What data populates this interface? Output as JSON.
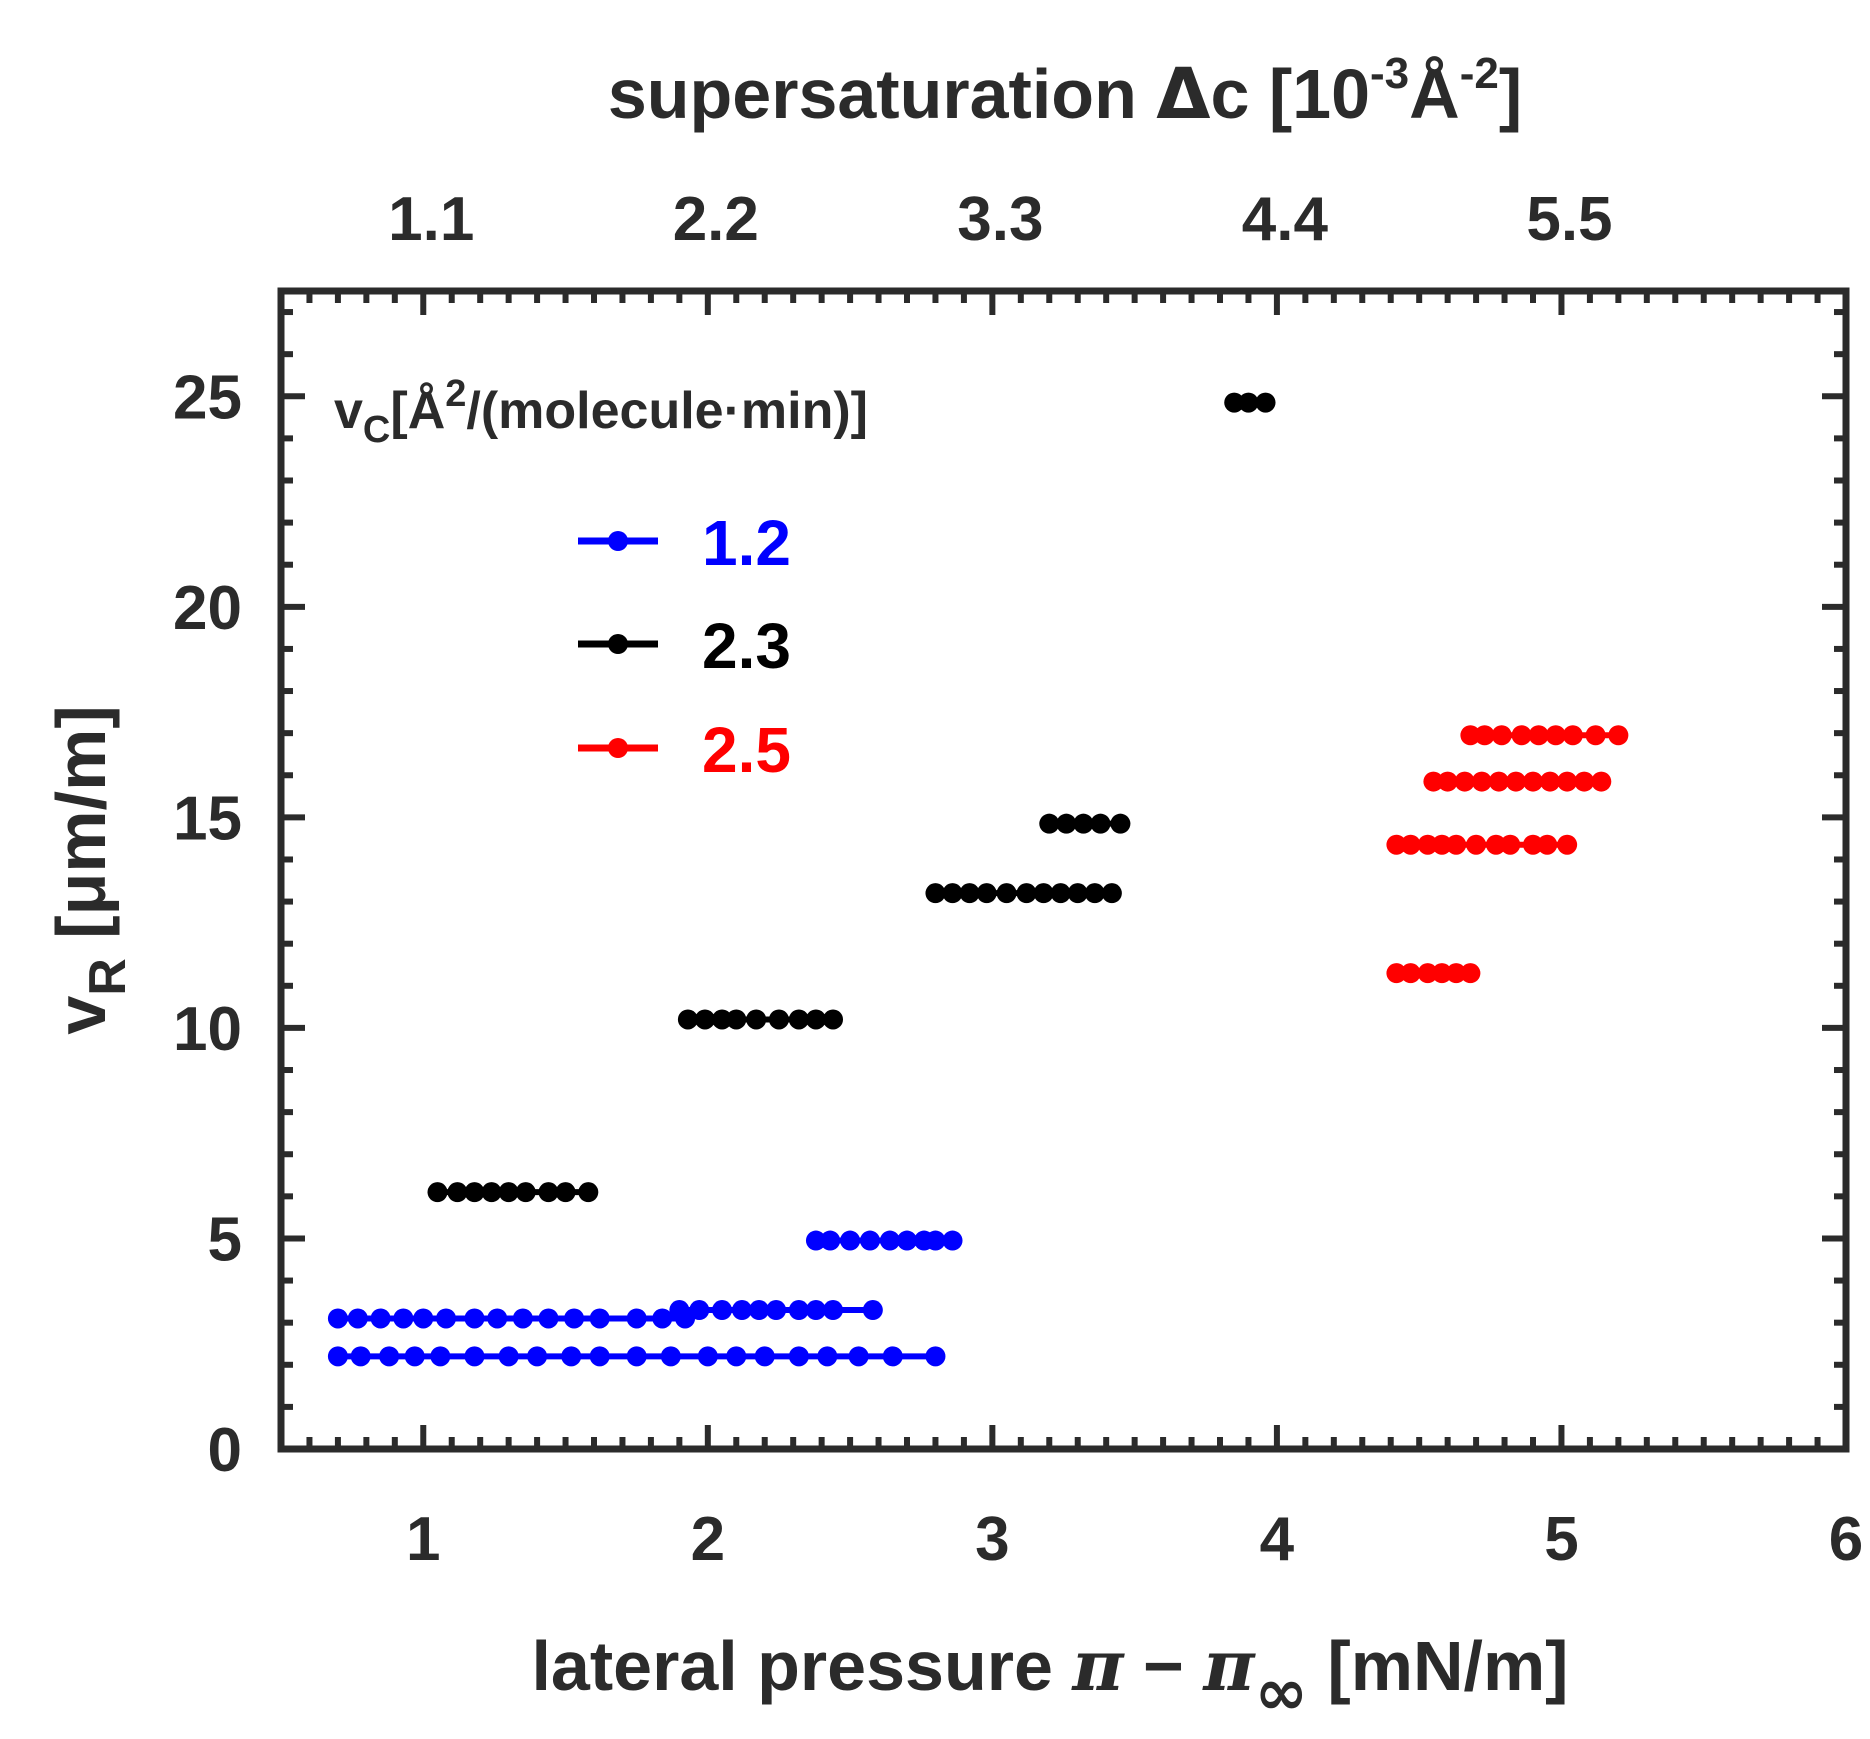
{
  "chart_data": {
    "type": "scatter",
    "title": "",
    "xlabel": {
      "main": "lateral pressure ",
      "pi1": "π",
      "minus": " − ",
      "pi2": "π",
      "sub": "∞",
      "unit": " [mN/m]"
    },
    "ylabel": {
      "main": "v",
      "sub": "R",
      "unit": " [μm/m]"
    },
    "top_axis": {
      "label_main": "supersaturation ",
      "delta": "Δ",
      "label_var": "c [10",
      "exp1": "-3",
      "angstrom": "Å",
      "exp2": "-2",
      "label_end": "]",
      "tick_labels": [
        "1.1",
        "2.2",
        "3.3",
        "4.4",
        "5.5"
      ],
      "tick_positions": [
        1,
        2,
        3,
        4,
        5
      ]
    },
    "xlim": [
      0.5,
      6
    ],
    "ylim": [
      0,
      27.5
    ],
    "x_ticks": [
      1,
      2,
      3,
      4,
      5,
      6
    ],
    "x_tick_labels": [
      "1",
      "2",
      "3",
      "4",
      "5",
      "6"
    ],
    "y_ticks": [
      0,
      5,
      10,
      15,
      20,
      25
    ],
    "y_tick_labels": [
      "0",
      "5",
      "10",
      "15",
      "20",
      "25"
    ],
    "legend": {
      "title_main": "v",
      "title_sub": "C",
      "title_unit_a": "[Å",
      "title_exp": "2",
      "title_unit_b": "/(molecule·min)]",
      "placement": "top-left",
      "entries": [
        "1.2",
        "2.3",
        "2.5"
      ]
    },
    "series": [
      {
        "name": "1.2",
        "color": "#0000ff",
        "lines": [
          {
            "y": 3.1,
            "x": [
              0.7,
              0.77,
              0.85,
              0.93,
              1.0,
              1.08,
              1.18,
              1.26,
              1.35,
              1.44,
              1.53,
              1.62,
              1.75,
              1.84,
              1.92
            ]
          },
          {
            "y": 2.2,
            "x": [
              0.7,
              0.78,
              0.88,
              0.97,
              1.06,
              1.18,
              1.3,
              1.4,
              1.52,
              1.62,
              1.75,
              1.87,
              2.0,
              2.1,
              2.2,
              2.32,
              2.42,
              2.53,
              2.65,
              2.8
            ]
          },
          {
            "y": 3.3,
            "x": [
              1.9,
              1.97,
              2.05,
              2.12,
              2.18,
              2.24,
              2.32,
              2.38,
              2.44,
              2.58
            ]
          },
          {
            "y": 4.95,
            "x": [
              2.38,
              2.43,
              2.5,
              2.57,
              2.64,
              2.7,
              2.76,
              2.8,
              2.86
            ]
          }
        ]
      },
      {
        "name": "2.3",
        "color": "#000000",
        "lines": [
          {
            "y": 6.1,
            "x": [
              1.05,
              1.12,
              1.18,
              1.24,
              1.3,
              1.36,
              1.44,
              1.5,
              1.58
            ]
          },
          {
            "y": 10.2,
            "x": [
              1.93,
              1.99,
              2.05,
              2.1,
              2.17,
              2.25,
              2.32,
              2.38,
              2.44
            ]
          },
          {
            "y": 13.2,
            "x": [
              2.8,
              2.86,
              2.92,
              2.98,
              3.05,
              3.12,
              3.18,
              3.24,
              3.3,
              3.36,
              3.42
            ]
          },
          {
            "y": 14.85,
            "x": [
              3.2,
              3.26,
              3.32,
              3.38,
              3.45
            ]
          },
          {
            "y": 24.85,
            "x": [
              3.85,
              3.9,
              3.96
            ]
          }
        ]
      },
      {
        "name": "2.5",
        "color": "#ff0000",
        "lines": [
          {
            "y": 11.3,
            "x": [
              4.42,
              4.47,
              4.53,
              4.58,
              4.63,
              4.68
            ]
          },
          {
            "y": 14.35,
            "x": [
              4.42,
              4.47,
              4.53,
              4.58,
              4.63,
              4.7,
              4.77,
              4.82,
              4.9,
              4.95,
              5.02
            ]
          },
          {
            "y": 15.85,
            "x": [
              4.55,
              4.6,
              4.66,
              4.72,
              4.78,
              4.84,
              4.9,
              4.96,
              5.02,
              5.08,
              5.14
            ]
          },
          {
            "y": 16.95,
            "x": [
              4.68,
              4.73,
              4.79,
              4.86,
              4.92,
              4.98,
              5.04,
              5.12,
              5.2
            ]
          }
        ]
      }
    ]
  }
}
